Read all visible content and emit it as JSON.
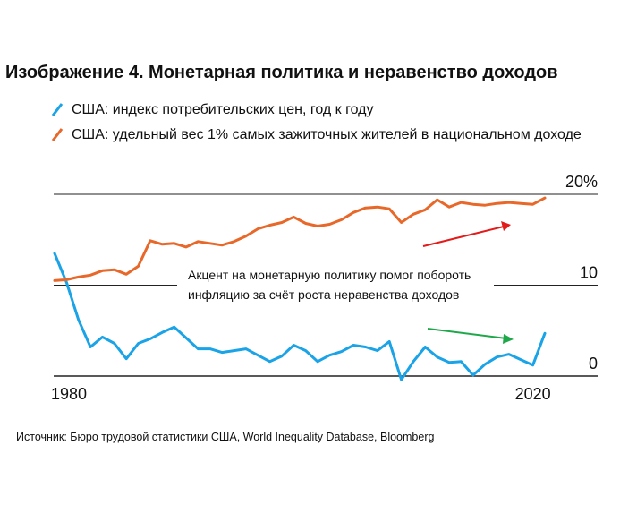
{
  "title": "Изображение 4. Монетарная политика и неравенство доходов",
  "legend": [
    {
      "label": "США: индекс потребительских цен, год к году",
      "color": "#1aa3e6"
    },
    {
      "label": "США: удельный вес 1% самых зажиточных жителей в национальном доходе",
      "color": "#e8682a"
    }
  ],
  "annotation": {
    "line1": "Акцент на монетарную политику помог побороть",
    "line2": "инфляцию за счёт роста неравенства доходов",
    "up_arrow_color": "#e31b1b",
    "down_arrow_color": "#1fa84a"
  },
  "source": "Источник: Бюро трудовой статистики США, World Inequality Database, Bloomberg",
  "chart_data": {
    "type": "line",
    "x": [
      1980,
      1981,
      1982,
      1983,
      1984,
      1985,
      1986,
      1987,
      1988,
      1989,
      1990,
      1991,
      1992,
      1993,
      1994,
      1995,
      1996,
      1997,
      1998,
      1999,
      2000,
      2001,
      2002,
      2003,
      2004,
      2005,
      2006,
      2007,
      2008,
      2009,
      2010,
      2011,
      2012,
      2013,
      2014,
      2015,
      2016,
      2017,
      2018,
      2019,
      2020,
      2021
    ],
    "xticks": [
      "1980",
      "2020"
    ],
    "yticks": [
      {
        "value": 0,
        "label": "0"
      },
      {
        "value": 10,
        "label": "10"
      },
      {
        "value": 20,
        "label": "20%"
      }
    ],
    "ylim": [
      0,
      20
    ],
    "series": [
      {
        "name": "США: индекс потребительских цен, год к году",
        "color": "#1aa3e6",
        "values": [
          13.5,
          10.3,
          6.2,
          3.2,
          4.3,
          3.6,
          1.9,
          3.6,
          4.1,
          4.8,
          5.4,
          4.2,
          3.0,
          3.0,
          2.6,
          2.8,
          3.0,
          2.3,
          1.6,
          2.2,
          3.4,
          2.8,
          1.6,
          2.3,
          2.7,
          3.4,
          3.2,
          2.8,
          3.8,
          -0.4,
          1.6,
          3.2,
          2.1,
          1.5,
          1.6,
          0.1,
          1.3,
          2.1,
          2.4,
          1.8,
          1.2,
          4.7
        ]
      },
      {
        "name": "США: удельный вес 1% самых зажиточных жителей в национальном доходе",
        "color": "#e8682a",
        "values": [
          10.5,
          10.6,
          10.9,
          11.1,
          11.6,
          11.7,
          11.2,
          12.1,
          14.9,
          14.5,
          14.6,
          14.2,
          14.8,
          14.6,
          14.4,
          14.8,
          15.4,
          16.2,
          16.6,
          16.9,
          17.5,
          16.8,
          16.5,
          16.7,
          17.2,
          18.0,
          18.5,
          18.6,
          18.4,
          16.9,
          17.8,
          18.3,
          19.4,
          18.6,
          19.1,
          18.9,
          18.8,
          19.0,
          19.1,
          19.0,
          18.9,
          19.6
        ]
      }
    ]
  }
}
